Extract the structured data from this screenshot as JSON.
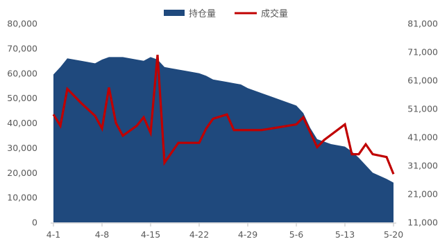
{
  "chart_data": {
    "type": "area+line",
    "legend": [
      {
        "name": "持仓量",
        "type": "area",
        "color": "#1f497d"
      },
      {
        "name": "成交量",
        "type": "line",
        "color": "#c00000"
      }
    ],
    "x_labels": [
      "4-1",
      "4-8",
      "4-15",
      "4-22",
      "4-29",
      "5-6",
      "5-13",
      "5-20"
    ],
    "y_left": {
      "min": 0,
      "max": 80000,
      "ticks": [
        "0",
        "10,000",
        "20,000",
        "30,000",
        "40,000",
        "50,000",
        "60,000",
        "70,000",
        "80,000"
      ]
    },
    "y_right": {
      "min": 11000,
      "max": 81000,
      "ticks": [
        "11,000",
        "21,000",
        "31,000",
        "41,000",
        "51,000",
        "61,000",
        "71,000",
        "81,000"
      ]
    },
    "series": [
      {
        "name": "持仓量",
        "axis": "left",
        "x": [
          0,
          1,
          2,
          4,
          6,
          7,
          8,
          10,
          12,
          13,
          14,
          15,
          16,
          17,
          19,
          21,
          22,
          23,
          25,
          26,
          27,
          28,
          31,
          35,
          36,
          37,
          38,
          40,
          42,
          43,
          44,
          46,
          48,
          49
        ],
        "values": [
          59500,
          62500,
          66000,
          65000,
          64000,
          65500,
          66500,
          66500,
          65500,
          65000,
          66500,
          65500,
          62500,
          62000,
          61000,
          60000,
          59000,
          57500,
          56500,
          56000,
          55500,
          54000,
          51000,
          47000,
          44000,
          38000,
          33500,
          31500,
          30500,
          28500,
          26000,
          20000,
          17500,
          16000
        ]
      },
      {
        "name": "成交量",
        "axis": "right",
        "x": [
          0,
          1,
          2,
          4,
          6,
          7,
          8,
          9,
          10,
          12,
          13,
          14,
          15,
          16,
          18,
          19,
          20,
          21,
          22,
          23,
          25,
          26,
          27,
          28,
          30,
          35,
          36,
          38,
          39,
          42,
          43,
          44,
          45,
          46,
          48,
          49
        ],
        "values": [
          49000,
          45000,
          58000,
          53000,
          48500,
          44000,
          58500,
          46000,
          41500,
          45000,
          48000,
          42500,
          70000,
          32000,
          39000,
          39000,
          39000,
          39000,
          44000,
          47500,
          49000,
          43500,
          43500,
          43500,
          43500,
          45500,
          48000,
          37500,
          40000,
          45500,
          35000,
          35000,
          38500,
          35000,
          34000,
          28000
        ]
      }
    ]
  }
}
